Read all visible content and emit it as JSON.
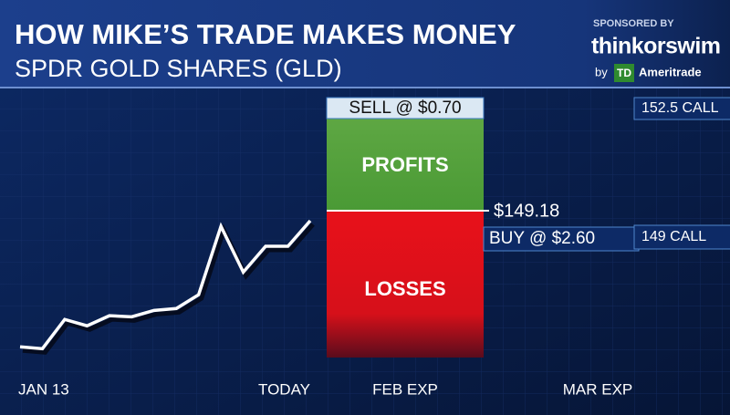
{
  "header": {
    "title": "HOW MIKE’S TRADE MAKES MONEY",
    "subtitle": "SPDR GOLD SHARES (GLD)",
    "sponsor": {
      "label": "SPONSORED BY",
      "brand": "thinkorswim",
      "by": "by",
      "logo": "TD",
      "company": "Ameritrade"
    }
  },
  "chart_data": {
    "type": "line",
    "categories": [
      "JAN 13",
      null,
      null,
      null,
      null,
      null,
      null,
      null,
      null,
      null,
      null,
      null,
      null,
      "TODAY"
    ],
    "values": [
      146.13,
      146.08,
      146.86,
      146.69,
      146.96,
      146.93,
      147.1,
      147.15,
      147.52,
      149.34,
      148.12,
      148.81,
      148.81,
      149.49
    ],
    "color": "#ffffff",
    "ylim": [
      145.65,
      152.82
    ],
    "expiry_labels": [
      "FEB EXP",
      "MAR EXP"
    ],
    "annotations": {
      "sell": "SELL @ $0.70",
      "profits": "PROFITS",
      "losses": "LOSSES",
      "breakeven": "$149.18",
      "buy": "BUY @ $2.60",
      "upper_call": "152.5 CALL",
      "lower_call": "149 CALL"
    }
  }
}
